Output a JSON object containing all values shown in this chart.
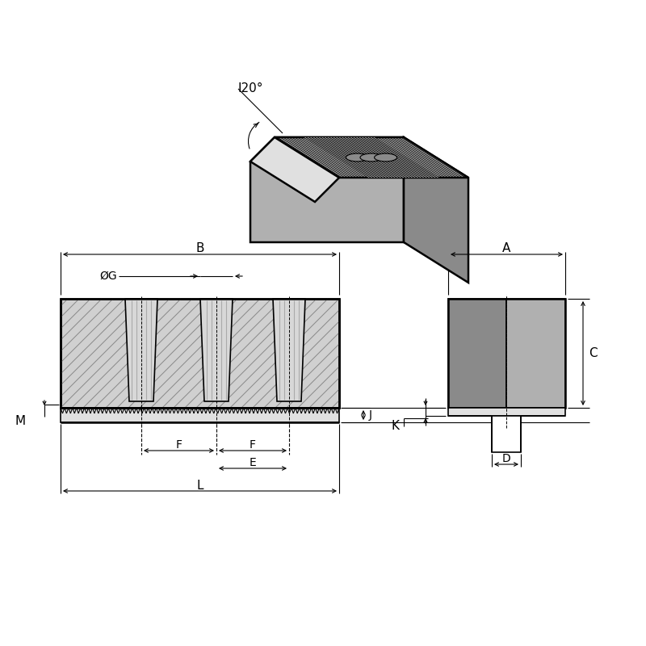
{
  "bg_color": "#ffffff",
  "lc": "#000000",
  "gray_dark": "#8a8a8a",
  "gray_mid": "#b0b0b0",
  "gray_light": "#d0d0d0",
  "gray_lighter": "#e0e0e0",
  "hatch_color": "#888888",
  "angle_label": "I20°",
  "diam_label": "ØG",
  "labels": {
    "A": "A",
    "B": "B",
    "C": "C",
    "D": "D",
    "E": "E",
    "F": "F",
    "G": "G",
    "J": "J",
    "K": "K",
    "L": "L",
    "M": "M"
  }
}
